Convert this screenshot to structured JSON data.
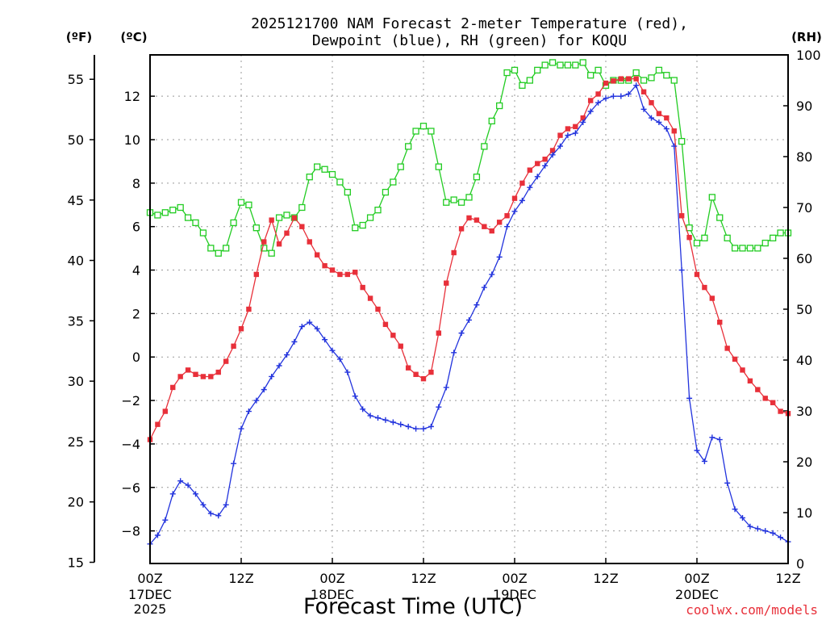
{
  "chart_data": {
    "type": "line",
    "title_line1": "2025121700 NAM Forecast 2-meter Temperature (red),",
    "title_line2": "Dewpoint (blue), RH (green) for KOQU",
    "xlabel": "Forecast Time (UTC)",
    "credit": "coolwx.com/models",
    "unit_left_outer": "(ºF)",
    "unit_left_inner": "(ºC)",
    "unit_right": "(RH)",
    "x_range_hours": [
      0,
      84
    ],
    "y_celsius_range": [
      -9.5,
      13.9
    ],
    "y_fahrenheit_range": [
      15,
      57
    ],
    "y_rh_range": [
      0,
      100
    ],
    "grid": true,
    "x_ticks": [
      {
        "hour": 0,
        "label": "00Z",
        "sub1": "17DEC",
        "sub2": "2025"
      },
      {
        "hour": 12,
        "label": "12Z",
        "sub1": "",
        "sub2": ""
      },
      {
        "hour": 24,
        "label": "00Z",
        "sub1": "18DEC",
        "sub2": ""
      },
      {
        "hour": 36,
        "label": "12Z",
        "sub1": "",
        "sub2": ""
      },
      {
        "hour": 48,
        "label": "00Z",
        "sub1": "19DEC",
        "sub2": ""
      },
      {
        "hour": 60,
        "label": "12Z",
        "sub1": "",
        "sub2": ""
      },
      {
        "hour": 72,
        "label": "00Z",
        "sub1": "20DEC",
        "sub2": ""
      },
      {
        "hour": 84,
        "label": "12Z",
        "sub1": "",
        "sub2": ""
      }
    ],
    "y_celsius_ticks": [
      -8,
      -6,
      -4,
      -2,
      0,
      2,
      4,
      6,
      8,
      10,
      12
    ],
    "y_fahrenheit_ticks": [
      15,
      20,
      25,
      30,
      35,
      40,
      45,
      50,
      55
    ],
    "y_rh_ticks": [
      0,
      10,
      20,
      30,
      40,
      50,
      60,
      70,
      80,
      90,
      100
    ],
    "series_colors": {
      "temperature": "#e8303a",
      "dewpoint": "#2233dd",
      "rh": "#22cc22"
    },
    "temperature_c": [
      [
        0,
        -3.8
      ],
      [
        1,
        -3.1
      ],
      [
        2,
        -2.5
      ],
      [
        3,
        -1.4
      ],
      [
        4,
        -0.9
      ],
      [
        5,
        -0.6
      ],
      [
        6,
        -0.8
      ],
      [
        7,
        -0.9
      ],
      [
        8,
        -0.9
      ],
      [
        9,
        -0.7
      ],
      [
        10,
        -0.2
      ],
      [
        11,
        0.5
      ],
      [
        12,
        1.3
      ],
      [
        13,
        2.2
      ],
      [
        14,
        3.8
      ],
      [
        15,
        5.3
      ],
      [
        16,
        6.3
      ],
      [
        17,
        5.2
      ],
      [
        18,
        5.7
      ],
      [
        19,
        6.4
      ],
      [
        20,
        6.0
      ],
      [
        21,
        5.3
      ],
      [
        22,
        4.7
      ],
      [
        23,
        4.2
      ],
      [
        24,
        4.0
      ],
      [
        25,
        3.8
      ],
      [
        26,
        3.8
      ],
      [
        27,
        3.9
      ],
      [
        28,
        3.2
      ],
      [
        29,
        2.7
      ],
      [
        30,
        2.2
      ],
      [
        31,
        1.5
      ],
      [
        32,
        1.0
      ],
      [
        33,
        0.5
      ],
      [
        34,
        -0.5
      ],
      [
        35,
        -0.8
      ],
      [
        36,
        -1.0
      ],
      [
        37,
        -0.7
      ],
      [
        38,
        1.1
      ],
      [
        39,
        3.4
      ],
      [
        40,
        4.8
      ],
      [
        41,
        5.9
      ],
      [
        42,
        6.4
      ],
      [
        43,
        6.3
      ],
      [
        44,
        6.0
      ],
      [
        45,
        5.8
      ],
      [
        46,
        6.2
      ],
      [
        47,
        6.5
      ],
      [
        48,
        7.3
      ],
      [
        49,
        8.0
      ],
      [
        50,
        8.6
      ],
      [
        51,
        8.9
      ],
      [
        52,
        9.1
      ],
      [
        53,
        9.5
      ],
      [
        54,
        10.2
      ],
      [
        55,
        10.5
      ],
      [
        56,
        10.6
      ],
      [
        57,
        11.0
      ],
      [
        58,
        11.8
      ],
      [
        59,
        12.1
      ],
      [
        60,
        12.6
      ],
      [
        61,
        12.7
      ],
      [
        62,
        12.8
      ],
      [
        63,
        12.8
      ],
      [
        64,
        12.8
      ],
      [
        65,
        12.2
      ],
      [
        66,
        11.7
      ],
      [
        67,
        11.2
      ],
      [
        68,
        11.0
      ],
      [
        69,
        10.4
      ],
      [
        70,
        6.5
      ],
      [
        71,
        5.5
      ],
      [
        72,
        3.8
      ],
      [
        73,
        3.2
      ],
      [
        74,
        2.7
      ],
      [
        75,
        1.6
      ],
      [
        76,
        0.4
      ],
      [
        77,
        -0.1
      ],
      [
        78,
        -0.6
      ],
      [
        79,
        -1.1
      ],
      [
        80,
        -1.5
      ],
      [
        81,
        -1.9
      ],
      [
        82,
        -2.1
      ],
      [
        83,
        -2.5
      ],
      [
        84,
        -2.6
      ]
    ],
    "dewpoint_c": [
      [
        0,
        -8.6
      ],
      [
        1,
        -8.2
      ],
      [
        2,
        -7.5
      ],
      [
        3,
        -6.3
      ],
      [
        4,
        -5.7
      ],
      [
        5,
        -5.9
      ],
      [
        6,
        -6.3
      ],
      [
        7,
        -6.8
      ],
      [
        8,
        -7.2
      ],
      [
        9,
        -7.3
      ],
      [
        10,
        -6.8
      ],
      [
        11,
        -4.9
      ],
      [
        12,
        -3.3
      ],
      [
        13,
        -2.5
      ],
      [
        14,
        -2.0
      ],
      [
        15,
        -1.5
      ],
      [
        16,
        -0.9
      ],
      [
        17,
        -0.4
      ],
      [
        18,
        0.1
      ],
      [
        19,
        0.7
      ],
      [
        20,
        1.4
      ],
      [
        21,
        1.6
      ],
      [
        22,
        1.3
      ],
      [
        23,
        0.8
      ],
      [
        24,
        0.3
      ],
      [
        25,
        -0.1
      ],
      [
        26,
        -0.7
      ],
      [
        27,
        -1.8
      ],
      [
        28,
        -2.4
      ],
      [
        29,
        -2.7
      ],
      [
        30,
        -2.8
      ],
      [
        31,
        -2.9
      ],
      [
        32,
        -3.0
      ],
      [
        33,
        -3.1
      ],
      [
        34,
        -3.2
      ],
      [
        35,
        -3.3
      ],
      [
        36,
        -3.3
      ],
      [
        37,
        -3.2
      ],
      [
        38,
        -2.3
      ],
      [
        39,
        -1.4
      ],
      [
        40,
        0.2
      ],
      [
        41,
        1.1
      ],
      [
        42,
        1.7
      ],
      [
        43,
        2.4
      ],
      [
        44,
        3.2
      ],
      [
        45,
        3.8
      ],
      [
        46,
        4.6
      ],
      [
        47,
        6.0
      ],
      [
        48,
        6.7
      ],
      [
        49,
        7.2
      ],
      [
        50,
        7.8
      ],
      [
        51,
        8.3
      ],
      [
        52,
        8.8
      ],
      [
        53,
        9.3
      ],
      [
        54,
        9.7
      ],
      [
        55,
        10.2
      ],
      [
        56,
        10.3
      ],
      [
        57,
        10.8
      ],
      [
        58,
        11.3
      ],
      [
        59,
        11.7
      ],
      [
        60,
        11.9
      ],
      [
        61,
        12.0
      ],
      [
        62,
        12.0
      ],
      [
        63,
        12.1
      ],
      [
        64,
        12.5
      ],
      [
        65,
        11.4
      ],
      [
        66,
        11.0
      ],
      [
        67,
        10.8
      ],
      [
        68,
        10.5
      ],
      [
        69,
        9.7
      ],
      [
        70,
        4.0
      ],
      [
        71,
        -1.9
      ],
      [
        72,
        -4.3
      ],
      [
        73,
        -4.8
      ],
      [
        74,
        -3.7
      ],
      [
        75,
        -3.8
      ],
      [
        76,
        -5.8
      ],
      [
        77,
        -7.0
      ],
      [
        78,
        -7.4
      ],
      [
        79,
        -7.8
      ],
      [
        80,
        -7.9
      ],
      [
        81,
        -8.0
      ],
      [
        82,
        -8.1
      ],
      [
        83,
        -8.3
      ],
      [
        84,
        -8.5
      ]
    ],
    "rh_pct": [
      [
        0,
        69
      ],
      [
        1,
        68.5
      ],
      [
        2,
        69
      ],
      [
        3,
        69.5
      ],
      [
        4,
        70
      ],
      [
        5,
        68
      ],
      [
        6,
        67
      ],
      [
        7,
        65
      ],
      [
        8,
        62
      ],
      [
        9,
        61
      ],
      [
        10,
        62
      ],
      [
        11,
        67
      ],
      [
        12,
        71
      ],
      [
        13,
        70.5
      ],
      [
        14,
        66
      ],
      [
        15,
        62
      ],
      [
        16,
        61
      ],
      [
        17,
        68
      ],
      [
        18,
        68.5
      ],
      [
        19,
        68
      ],
      [
        20,
        70
      ],
      [
        21,
        76
      ],
      [
        22,
        78
      ],
      [
        23,
        77.5
      ],
      [
        24,
        76.5
      ],
      [
        25,
        75
      ],
      [
        26,
        73
      ],
      [
        27,
        66
      ],
      [
        28,
        66.5
      ],
      [
        29,
        68
      ],
      [
        30,
        69.5
      ],
      [
        31,
        73
      ],
      [
        32,
        75
      ],
      [
        33,
        78
      ],
      [
        34,
        82
      ],
      [
        35,
        85
      ],
      [
        36,
        86
      ],
      [
        37,
        85
      ],
      [
        38,
        78
      ],
      [
        39,
        71
      ],
      [
        40,
        71.5
      ],
      [
        41,
        71
      ],
      [
        42,
        72
      ],
      [
        43,
        76
      ],
      [
        44,
        82
      ],
      [
        45,
        87
      ],
      [
        46,
        90
      ],
      [
        47,
        96.5
      ],
      [
        48,
        97
      ],
      [
        49,
        94
      ],
      [
        50,
        95
      ],
      [
        51,
        97
      ],
      [
        52,
        98
      ],
      [
        53,
        98.5
      ],
      [
        54,
        98
      ],
      [
        55,
        98
      ],
      [
        56,
        98
      ],
      [
        57,
        98.5
      ],
      [
        58,
        96
      ],
      [
        59,
        97
      ],
      [
        60,
        94
      ],
      [
        61,
        95
      ],
      [
        62,
        95
      ],
      [
        63,
        95
      ],
      [
        64,
        96.5
      ],
      [
        65,
        95
      ],
      [
        66,
        95.5
      ],
      [
        67,
        97
      ],
      [
        68,
        96
      ],
      [
        69,
        95
      ],
      [
        70,
        83
      ],
      [
        71,
        66
      ],
      [
        72,
        63
      ],
      [
        73,
        64
      ],
      [
        74,
        72
      ],
      [
        75,
        68
      ],
      [
        76,
        64
      ],
      [
        77,
        62
      ],
      [
        78,
        62
      ],
      [
        79,
        62
      ],
      [
        80,
        62
      ],
      [
        81,
        63
      ],
      [
        82,
        64
      ],
      [
        83,
        65
      ],
      [
        84,
        65
      ]
    ]
  }
}
